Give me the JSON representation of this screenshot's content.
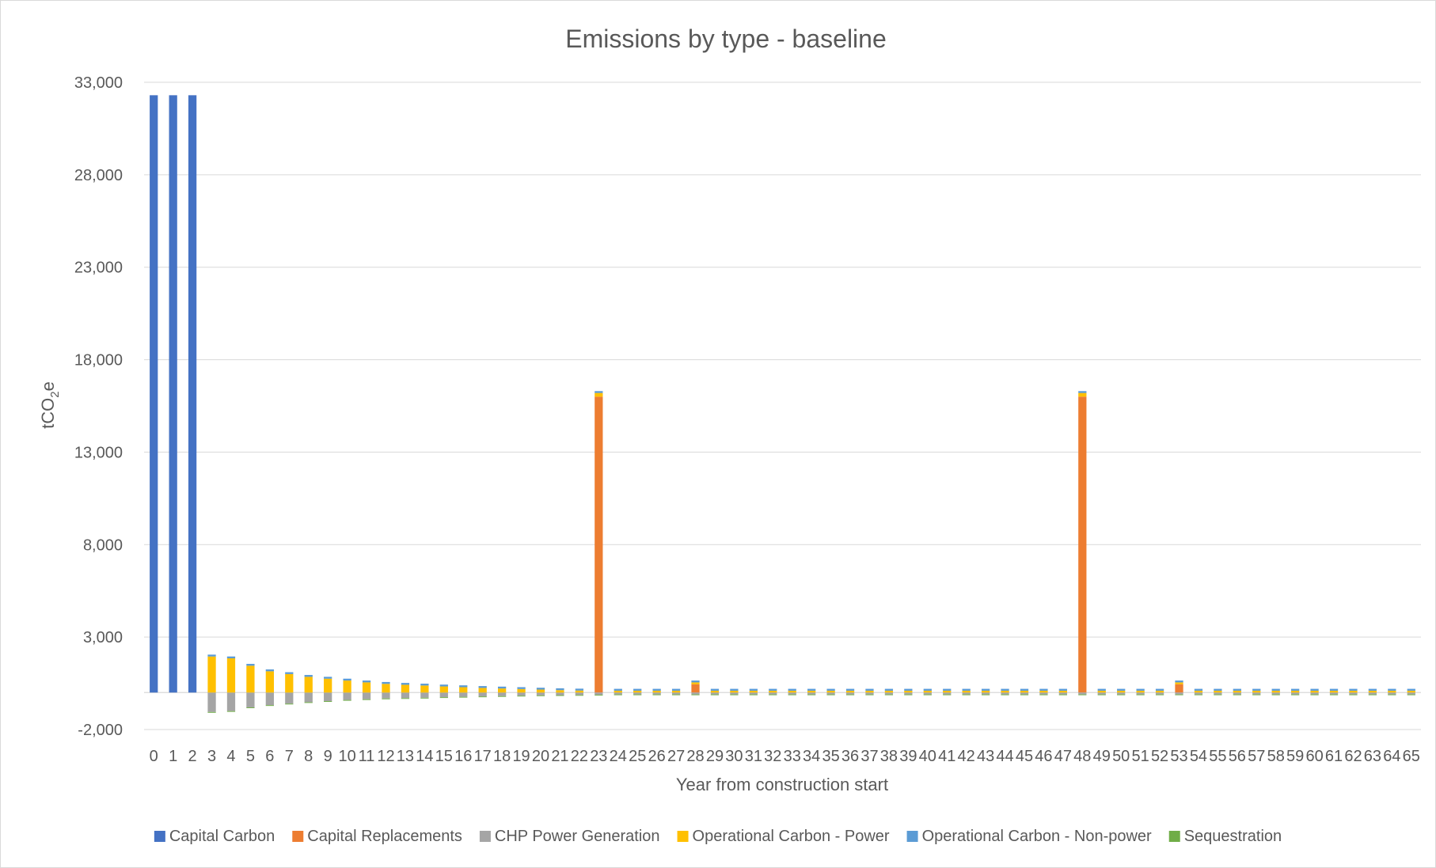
{
  "chart_data": {
    "type": "bar",
    "stacked": true,
    "title": "Emissions by type - baseline",
    "xlabel": "Year from construction start",
    "ylabel_main": "tCO",
    "ylabel_sub": "2",
    "ylabel_tail": "e",
    "yticks": [
      -2000,
      3000,
      8000,
      13000,
      18000,
      23000,
      28000,
      33000
    ],
    "ytick_labels": [
      "-2,000",
      "3,000",
      "8,000",
      "13,000",
      "18,000",
      "23,000",
      "28,000",
      "33,000"
    ],
    "ylim": [
      -2000,
      33000
    ],
    "grid": true,
    "legend_position": "bottom",
    "categories": [
      "0",
      "1",
      "2",
      "3",
      "4",
      "5",
      "6",
      "7",
      "8",
      "9",
      "10",
      "11",
      "12",
      "13",
      "14",
      "15",
      "16",
      "17",
      "18",
      "19",
      "20",
      "21",
      "22",
      "23",
      "24",
      "25",
      "26",
      "27",
      "28",
      "29",
      "30",
      "31",
      "32",
      "33",
      "34",
      "35",
      "36",
      "37",
      "38",
      "39",
      "40",
      "41",
      "42",
      "43",
      "44",
      "45",
      "46",
      "47",
      "48",
      "49",
      "50",
      "51",
      "52",
      "53",
      "54",
      "55",
      "56",
      "57",
      "58",
      "59",
      "60",
      "61",
      "62",
      "63",
      "64",
      "65"
    ],
    "series": [
      {
        "name": "Capital Carbon",
        "color": "#4472C4",
        "values": [
          32300,
          32300,
          32300,
          0,
          0,
          0,
          0,
          0,
          0,
          0,
          0,
          0,
          0,
          0,
          0,
          0,
          0,
          0,
          0,
          0,
          0,
          0,
          0,
          0,
          0,
          0,
          0,
          0,
          0,
          0,
          0,
          0,
          0,
          0,
          0,
          0,
          0,
          0,
          0,
          0,
          0,
          0,
          0,
          0,
          0,
          0,
          0,
          0,
          0,
          0,
          0,
          0,
          0,
          0,
          0,
          0,
          0,
          0,
          0,
          0,
          0,
          0,
          0,
          0,
          0,
          0
        ]
      },
      {
        "name": "Capital Replacements",
        "color": "#ED7D31",
        "values": [
          0,
          0,
          0,
          0,
          0,
          0,
          0,
          0,
          0,
          0,
          0,
          0,
          0,
          0,
          0,
          0,
          0,
          0,
          0,
          0,
          0,
          0,
          0,
          16000,
          0,
          0,
          0,
          0,
          450,
          0,
          0,
          0,
          0,
          0,
          0,
          0,
          0,
          0,
          0,
          0,
          0,
          0,
          0,
          0,
          0,
          0,
          0,
          0,
          16000,
          0,
          0,
          0,
          0,
          450,
          0,
          0,
          0,
          0,
          0,
          0,
          0,
          0,
          0,
          0,
          0,
          0
        ]
      },
      {
        "name": "CHP Power Generation",
        "color": "#A5A5A5",
        "values": [
          0,
          0,
          0,
          -1050,
          -1000,
          -800,
          -680,
          -600,
          -520,
          -460,
          -400,
          -360,
          -320,
          -300,
          -280,
          -250,
          -230,
          -210,
          -190,
          -170,
          -150,
          -140,
          -130,
          -120,
          -100,
          -100,
          -100,
          -100,
          -100,
          -100,
          -100,
          -100,
          -100,
          -100,
          -100,
          -100,
          -100,
          -100,
          -100,
          -100,
          -100,
          -100,
          -100,
          -100,
          -100,
          -100,
          -100,
          -100,
          -100,
          -100,
          -100,
          -100,
          -100,
          -100,
          -100,
          -100,
          -100,
          -100,
          -100,
          -100,
          -100,
          -100,
          -100,
          -100,
          -100,
          -100
        ]
      },
      {
        "name": "Operational Carbon - Power",
        "color": "#FFC000",
        "values": [
          0,
          0,
          0,
          1950,
          1850,
          1450,
          1150,
          1000,
          850,
          750,
          650,
          550,
          470,
          420,
          380,
          330,
          290,
          250,
          220,
          190,
          160,
          130,
          110,
          200,
          100,
          100,
          100,
          100,
          100,
          100,
          100,
          100,
          100,
          100,
          100,
          100,
          100,
          100,
          100,
          100,
          100,
          100,
          100,
          100,
          100,
          100,
          100,
          100,
          200,
          100,
          100,
          100,
          100,
          100,
          100,
          100,
          100,
          100,
          100,
          100,
          100,
          100,
          100,
          100,
          100,
          100
        ]
      },
      {
        "name": "Operational Carbon - Non-power",
        "color": "#5B9BD5",
        "values": [
          0,
          0,
          0,
          100,
          100,
          100,
          100,
          100,
          100,
          100,
          100,
          100,
          100,
          100,
          100,
          100,
          100,
          100,
          100,
          100,
          100,
          100,
          100,
          100,
          100,
          100,
          100,
          100,
          100,
          100,
          100,
          100,
          100,
          100,
          100,
          100,
          100,
          100,
          100,
          100,
          100,
          100,
          100,
          100,
          100,
          100,
          100,
          100,
          100,
          100,
          100,
          100,
          100,
          100,
          100,
          100,
          100,
          100,
          100,
          100,
          100,
          100,
          100,
          100,
          100,
          100
        ]
      },
      {
        "name": "Sequestration",
        "color": "#70AD47",
        "values": [
          0,
          0,
          0,
          -30,
          -30,
          -30,
          -30,
          -30,
          -30,
          -30,
          -30,
          -30,
          -30,
          -30,
          -30,
          -30,
          -30,
          -30,
          -30,
          -30,
          -30,
          -30,
          -30,
          -30,
          -30,
          -30,
          -30,
          -30,
          -30,
          -30,
          -30,
          -30,
          -30,
          -30,
          -30,
          -30,
          -30,
          -30,
          -30,
          -30,
          -30,
          -30,
          -30,
          -30,
          -30,
          -30,
          -30,
          -30,
          -30,
          -30,
          -30,
          -30,
          -30,
          -30,
          -30,
          -30,
          -30,
          -30,
          -30,
          -30,
          -30,
          -30,
          -30,
          -30,
          -30,
          -30
        ]
      }
    ]
  }
}
